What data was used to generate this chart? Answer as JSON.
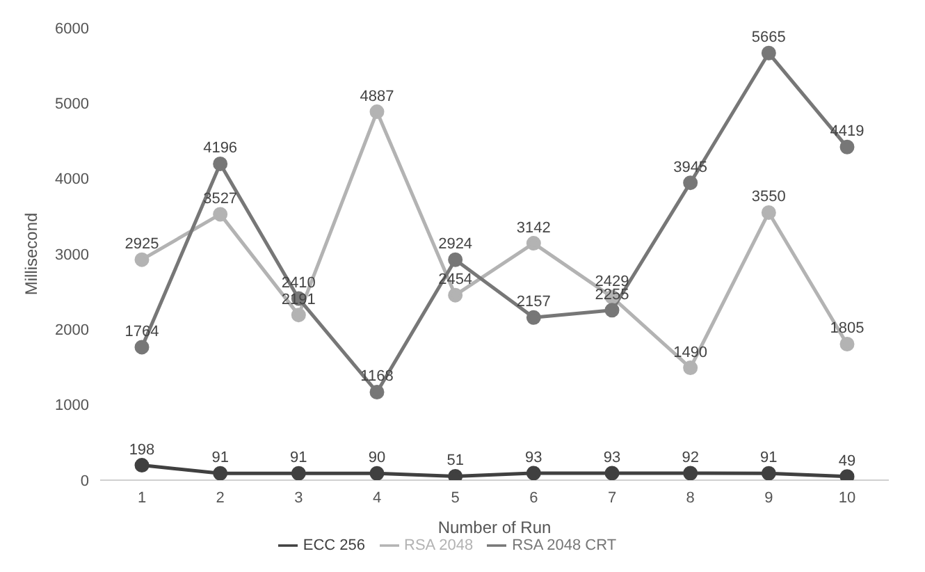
{
  "chart_data": {
    "type": "line",
    "xlabel": "Number of Run",
    "ylabel": "Millisecond",
    "categories": [
      "1",
      "2",
      "3",
      "4",
      "5",
      "6",
      "7",
      "8",
      "9",
      "10"
    ],
    "series": [
      {
        "name": "ECC 256",
        "color": "#404040",
        "values": [
          198,
          91,
          91,
          90,
          51,
          93,
          93,
          92,
          91,
          49
        ]
      },
      {
        "name": "RSA 2048",
        "color": "#b3b3b3",
        "values": [
          2925,
          3527,
          2191,
          4887,
          2454,
          3142,
          2429,
          1490,
          3550,
          1805
        ]
      },
      {
        "name": "RSA 2048 CRT",
        "color": "#777777",
        "values": [
          1764,
          4196,
          2410,
          1168,
          2924,
          2157,
          2255,
          3945,
          5665,
          4419
        ]
      }
    ],
    "ylim": [
      0,
      6000
    ],
    "yticks": [
      0,
      1000,
      2000,
      3000,
      4000,
      5000,
      6000
    ],
    "grid": false,
    "legend": "bottom",
    "marker": "circle",
    "line_style": "solid",
    "data_labels": true
  }
}
